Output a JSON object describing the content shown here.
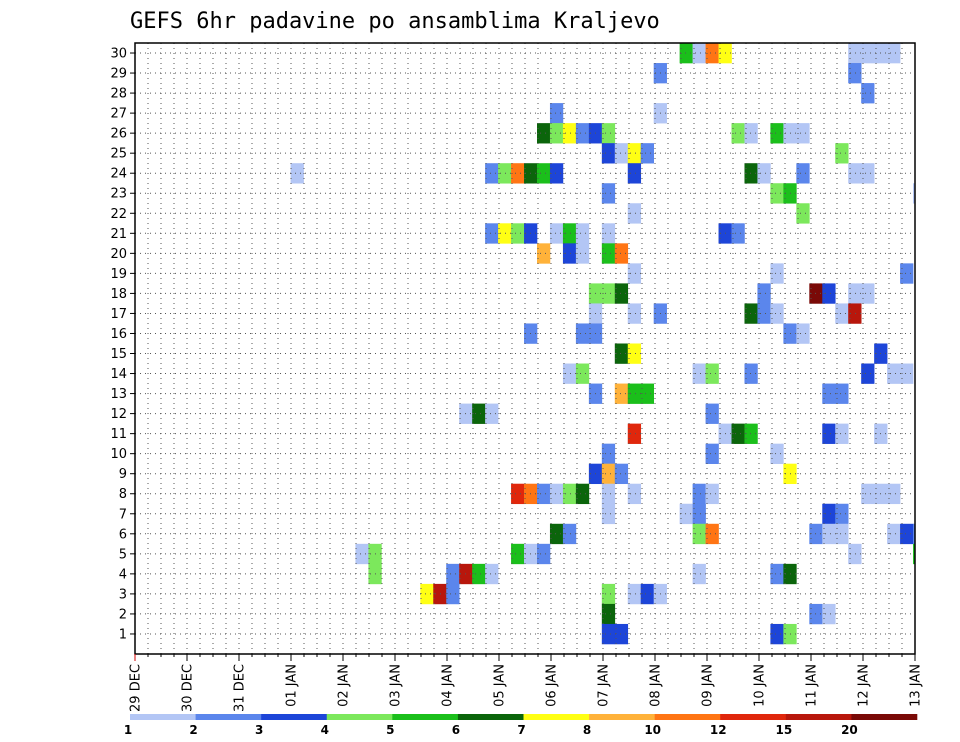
{
  "chart_data": {
    "type": "heatmap",
    "title": "GEFS 6hr padavine po ansamblima Kraljevo",
    "y_ticks": [
      1,
      2,
      3,
      4,
      5,
      6,
      7,
      8,
      9,
      10,
      11,
      12,
      13,
      14,
      15,
      16,
      17,
      18,
      19,
      20,
      21,
      22,
      23,
      24,
      25,
      26,
      27,
      28,
      29,
      30
    ],
    "x_ticks": [
      "29 DEC",
      "30 DEC",
      "31 DEC",
      "01 JAN",
      "02 JAN",
      "03 JAN",
      "04 JAN",
      "05 JAN",
      "06 JAN",
      "07 JAN",
      "08 JAN",
      "09 JAN",
      "10 JAN",
      "11 JAN",
      "12 JAN",
      "13 JAN"
    ],
    "grid": true,
    "color_levels": [
      1,
      2,
      3,
      4,
      5,
      6,
      7,
      8,
      10,
      12,
      15,
      20
    ],
    "colors": [
      "#b3c6f5",
      "#5b86ec",
      "#1d45d8",
      "#7ce85c",
      "#1bbf1b",
      "#0b650b",
      "#ffff14",
      "#ffb23a",
      "#ff7514",
      "#e0270c",
      "#b8170c",
      "#7a0a07"
    ],
    "cells": [
      [
        30,
        42,
        5
      ],
      [
        30,
        43,
        1
      ],
      [
        30,
        44,
        9
      ],
      [
        30,
        45,
        7
      ],
      [
        30,
        55,
        1
      ],
      [
        30,
        56,
        1
      ],
      [
        30,
        57,
        1
      ],
      [
        30,
        58,
        1
      ],
      [
        29,
        40,
        2
      ],
      [
        29,
        55,
        2
      ],
      [
        28,
        56,
        2
      ],
      [
        27,
        32,
        2
      ],
      [
        27,
        40,
        1
      ],
      [
        26,
        31,
        6
      ],
      [
        26,
        32,
        4
      ],
      [
        26,
        33,
        7
      ],
      [
        26,
        34,
        2
      ],
      [
        26,
        35,
        3
      ],
      [
        26,
        36,
        4
      ],
      [
        26,
        46,
        4
      ],
      [
        26,
        47,
        1
      ],
      [
        26,
        49,
        5
      ],
      [
        26,
        50,
        1
      ],
      [
        26,
        51,
        1
      ],
      [
        25,
        36,
        3
      ],
      [
        25,
        37,
        1
      ],
      [
        25,
        38,
        7
      ],
      [
        25,
        39,
        2
      ],
      [
        25,
        54,
        4
      ],
      [
        24,
        12,
        1
      ],
      [
        24,
        27,
        2
      ],
      [
        24,
        28,
        4
      ],
      [
        24,
        29,
        9
      ],
      [
        24,
        30,
        6
      ],
      [
        24,
        31,
        5
      ],
      [
        24,
        32,
        3
      ],
      [
        24,
        38,
        3
      ],
      [
        24,
        47,
        6
      ],
      [
        24,
        48,
        1
      ],
      [
        24,
        51,
        2
      ],
      [
        24,
        55,
        1
      ],
      [
        24,
        56,
        1
      ],
      [
        23,
        36,
        2
      ],
      [
        23,
        49,
        4
      ],
      [
        23,
        50,
        5
      ],
      [
        23,
        60,
        1
      ],
      [
        22,
        38,
        1
      ],
      [
        22,
        51,
        4
      ],
      [
        21,
        27,
        2
      ],
      [
        21,
        28,
        7
      ],
      [
        21,
        29,
        4
      ],
      [
        21,
        30,
        3
      ],
      [
        21,
        32,
        1
      ],
      [
        21,
        33,
        5
      ],
      [
        21,
        34,
        1
      ],
      [
        21,
        36,
        1
      ],
      [
        21,
        45,
        3
      ],
      [
        21,
        46,
        2
      ],
      [
        20,
        31,
        8
      ],
      [
        20,
        33,
        3
      ],
      [
        20,
        34,
        1
      ],
      [
        20,
        36,
        5
      ],
      [
        20,
        37,
        9
      ],
      [
        19,
        38,
        1
      ],
      [
        19,
        49,
        1
      ],
      [
        19,
        59,
        2
      ],
      [
        18,
        35,
        4
      ],
      [
        18,
        36,
        4
      ],
      [
        18,
        37,
        6
      ],
      [
        18,
        48,
        2
      ],
      [
        18,
        52,
        12
      ],
      [
        18,
        53,
        3
      ],
      [
        18,
        55,
        1
      ],
      [
        18,
        56,
        1
      ],
      [
        17,
        35,
        1
      ],
      [
        17,
        38,
        1
      ],
      [
        17,
        40,
        2
      ],
      [
        17,
        47,
        6
      ],
      [
        17,
        48,
        2
      ],
      [
        17,
        49,
        1
      ],
      [
        17,
        54,
        1
      ],
      [
        17,
        55,
        11
      ],
      [
        16,
        30,
        2
      ],
      [
        16,
        34,
        2
      ],
      [
        16,
        35,
        2
      ],
      [
        16,
        50,
        2
      ],
      [
        16,
        51,
        1
      ],
      [
        15,
        37,
        6
      ],
      [
        15,
        38,
        7
      ],
      [
        15,
        57,
        3
      ],
      [
        14,
        33,
        1
      ],
      [
        14,
        34,
        4
      ],
      [
        14,
        43,
        1
      ],
      [
        14,
        44,
        4
      ],
      [
        14,
        47,
        2
      ],
      [
        14,
        56,
        3
      ],
      [
        14,
        58,
        1
      ],
      [
        14,
        59,
        1
      ],
      [
        13,
        35,
        2
      ],
      [
        13,
        37,
        8
      ],
      [
        13,
        38,
        5
      ],
      [
        13,
        39,
        5
      ],
      [
        13,
        53,
        2
      ],
      [
        13,
        54,
        2
      ],
      [
        12,
        25,
        1
      ],
      [
        12,
        26,
        6
      ],
      [
        12,
        27,
        1
      ],
      [
        12,
        44,
        2
      ],
      [
        11,
        38,
        10
      ],
      [
        11,
        45,
        1
      ],
      [
        11,
        46,
        6
      ],
      [
        11,
        47,
        5
      ],
      [
        11,
        53,
        3
      ],
      [
        11,
        54,
        1
      ],
      [
        11,
        57,
        1
      ],
      [
        10,
        36,
        2
      ],
      [
        10,
        44,
        2
      ],
      [
        10,
        49,
        1
      ],
      [
        9,
        35,
        3
      ],
      [
        9,
        36,
        8
      ],
      [
        9,
        37,
        2
      ],
      [
        9,
        50,
        7
      ],
      [
        8,
        29,
        10
      ],
      [
        8,
        30,
        9
      ],
      [
        8,
        31,
        2
      ],
      [
        8,
        32,
        1
      ],
      [
        8,
        33,
        4
      ],
      [
        8,
        34,
        6
      ],
      [
        8,
        36,
        1
      ],
      [
        8,
        38,
        1
      ],
      [
        8,
        43,
        2
      ],
      [
        8,
        44,
        1
      ],
      [
        8,
        56,
        1
      ],
      [
        8,
        57,
        1
      ],
      [
        8,
        58,
        1
      ],
      [
        7,
        36,
        1
      ],
      [
        7,
        42,
        1
      ],
      [
        7,
        43,
        2
      ],
      [
        7,
        53,
        3
      ],
      [
        7,
        54,
        2
      ],
      [
        6,
        32,
        6
      ],
      [
        6,
        33,
        2
      ],
      [
        6,
        43,
        4
      ],
      [
        6,
        44,
        9
      ],
      [
        6,
        52,
        2
      ],
      [
        6,
        53,
        1
      ],
      [
        6,
        54,
        1
      ],
      [
        6,
        58,
        1
      ],
      [
        6,
        59,
        3
      ],
      [
        6,
        60,
        2
      ],
      [
        5,
        17,
        1
      ],
      [
        5,
        18,
        4
      ],
      [
        5,
        29,
        5
      ],
      [
        5,
        30,
        1
      ],
      [
        5,
        31,
        2
      ],
      [
        5,
        55,
        1
      ],
      [
        5,
        60,
        5
      ],
      [
        4,
        18,
        4
      ],
      [
        4,
        24,
        2
      ],
      [
        4,
        25,
        11
      ],
      [
        4,
        26,
        5
      ],
      [
        4,
        27,
        1
      ],
      [
        4,
        43,
        1
      ],
      [
        4,
        49,
        2
      ],
      [
        4,
        50,
        6
      ],
      [
        3,
        22,
        7
      ],
      [
        3,
        23,
        11
      ],
      [
        3,
        24,
        2
      ],
      [
        3,
        36,
        4
      ],
      [
        3,
        38,
        1
      ],
      [
        3,
        39,
        3
      ],
      [
        3,
        40,
        1
      ],
      [
        2,
        36,
        6
      ],
      [
        2,
        52,
        2
      ],
      [
        2,
        53,
        1
      ],
      [
        1,
        36,
        3
      ],
      [
        1,
        37,
        3
      ],
      [
        1,
        49,
        3
      ],
      [
        1,
        50,
        4
      ]
    ]
  }
}
